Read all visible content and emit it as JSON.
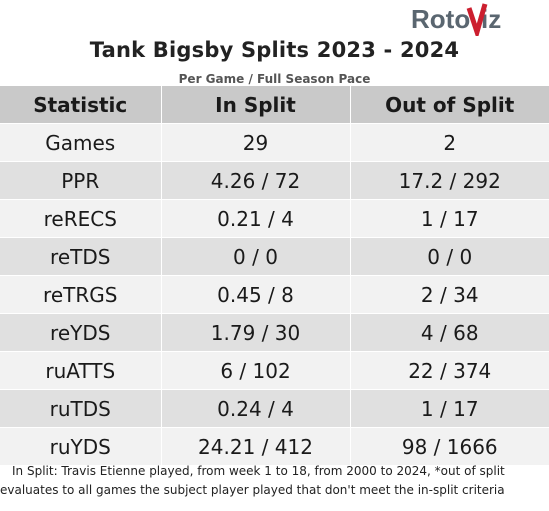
{
  "logo_text": "RotoViz",
  "title": "Tank Bigsby Splits 2023 - 2024",
  "subtitle": "Per Game / Full Season Pace",
  "columns": [
    "Statistic",
    "In Split",
    "Out of Split"
  ],
  "rows": [
    [
      "Games",
      "29",
      "2"
    ],
    [
      "PPR",
      "4.26 / 72",
      "17.2 / 292"
    ],
    [
      "reRECS",
      "0.21 / 4",
      "1 / 17"
    ],
    [
      "reTDS",
      "0 / 0",
      "0 / 0"
    ],
    [
      "reTRGS",
      "0.45 / 8",
      "2 / 34"
    ],
    [
      "reYDS",
      "1.79 / 30",
      "4 / 68"
    ],
    [
      "ruATTS",
      "6 / 102",
      "22 / 374"
    ],
    [
      "ruTDS",
      "0.24 / 4",
      "1 / 17"
    ],
    [
      "ruYDS",
      "24.21 / 412",
      "98 / 1666"
    ]
  ],
  "footnote": "In Split: Travis Etienne played, from week 1 to 18, from 2000 to 2024,  *out of split evaluates to all games the subject player played that don't meet the in-split criteria",
  "colors": {
    "header_bg": "#c9c9c9",
    "row_light": "#f2f2f2",
    "row_dark": "#e0e0e0",
    "logo_gray": "#5a6670",
    "logo_red": "#cc1f2f"
  }
}
